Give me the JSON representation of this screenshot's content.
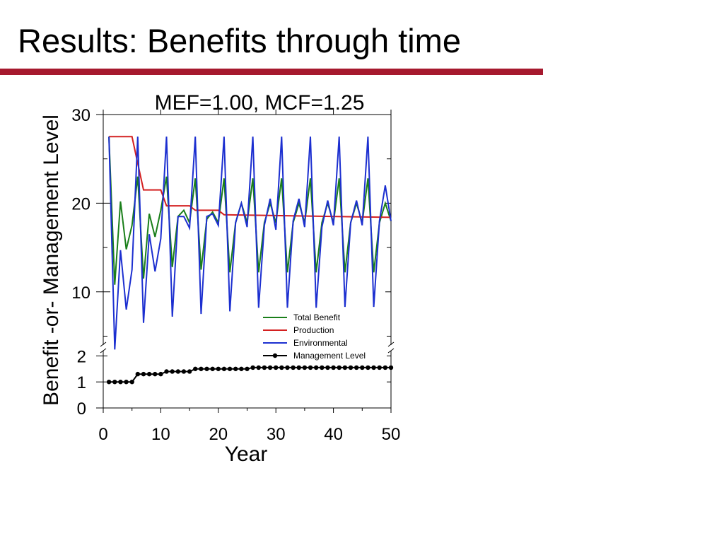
{
  "slide": {
    "title": "Results: Benefits through time",
    "accent_color": "#a6192e"
  },
  "chart_data": {
    "type": "line",
    "title": "MEF=1.00, MCF=1.25",
    "xlabel": "Year",
    "ylabel": "Benefit -or- Management Level",
    "xlim": [
      0,
      50
    ],
    "x_ticks": [
      0,
      10,
      20,
      30,
      40,
      50
    ],
    "upper_panel": {
      "ylim": [
        4,
        30
      ],
      "y_ticks": [
        10,
        20,
        30
      ]
    },
    "lower_panel": {
      "ylim": [
        0,
        2.2
      ],
      "y_ticks": [
        0,
        1,
        2
      ]
    },
    "axis_break": true,
    "grid": false,
    "legend_position": "bottom-right of upper panel",
    "series": [
      {
        "name": "Total Benefit",
        "color": "#1a7f1a",
        "panel": "upper",
        "x": [
          1,
          2,
          3,
          4,
          5,
          6,
          7,
          8,
          9,
          10,
          11,
          12,
          13,
          14,
          15,
          16,
          17,
          18,
          19,
          20,
          21,
          22,
          23,
          24,
          25,
          26,
          27,
          28,
          29,
          30,
          31,
          32,
          33,
          34,
          35,
          36,
          37,
          38,
          39,
          40,
          41,
          42,
          43,
          44,
          45,
          46,
          47,
          48,
          49,
          50
        ],
        "values": [
          27.5,
          10.8,
          20.2,
          14.8,
          17.5,
          23.0,
          11.5,
          18.8,
          16.2,
          19.2,
          23.0,
          12.8,
          18.5,
          19.2,
          17.8,
          22.8,
          12.5,
          18.2,
          19.0,
          17.8,
          22.8,
          12.2,
          17.8,
          20.0,
          17.8,
          22.8,
          12.2,
          17.8,
          20.0,
          17.8,
          22.8,
          12.2,
          17.8,
          20.0,
          17.8,
          22.8,
          12.2,
          17.8,
          20.0,
          17.8,
          22.8,
          12.2,
          17.8,
          20.0,
          17.8,
          22.8,
          12.2,
          17.8,
          20.0,
          18.0
        ]
      },
      {
        "name": "Production",
        "color": "#d42020",
        "panel": "upper",
        "x": [
          1,
          5,
          6,
          7,
          10,
          11,
          15,
          16,
          20,
          21,
          50
        ],
        "values": [
          27.5,
          27.5,
          24.5,
          21.5,
          21.5,
          19.7,
          19.7,
          19.2,
          19.2,
          18.7,
          18.4
        ]
      },
      {
        "name": "Environmental",
        "color": "#1c2fd0",
        "panel": "upper",
        "x": [
          1,
          2,
          3,
          4,
          5,
          6,
          7,
          8,
          9,
          10,
          11,
          12,
          13,
          14,
          15,
          16,
          17,
          18,
          19,
          20,
          21,
          22,
          23,
          24,
          25,
          26,
          27,
          28,
          29,
          30,
          31,
          32,
          33,
          34,
          35,
          36,
          37,
          38,
          39,
          40,
          41,
          42,
          43,
          44,
          45,
          46,
          47,
          48,
          49,
          50
        ],
        "values": [
          27.5,
          3.5,
          14.7,
          8.0,
          12.5,
          27.5,
          6.5,
          16.5,
          12.3,
          16.0,
          27.5,
          7.2,
          18.5,
          18.5,
          17.2,
          27.5,
          7.5,
          18.5,
          18.8,
          17.5,
          27.5,
          7.8,
          17.8,
          20.0,
          17.3,
          27.5,
          8.2,
          17.5,
          20.5,
          17.0,
          27.5,
          8.2,
          18.0,
          20.5,
          17.3,
          27.5,
          8.2,
          17.3,
          20.3,
          17.5,
          27.5,
          8.3,
          17.8,
          20.3,
          17.5,
          27.5,
          8.3,
          18.0,
          22.0,
          18.0
        ]
      },
      {
        "name": "Management Level",
        "color": "#000000",
        "panel": "lower",
        "markers": true,
        "x": [
          1,
          2,
          3,
          4,
          5,
          6,
          7,
          8,
          9,
          10,
          11,
          12,
          13,
          14,
          15,
          16,
          17,
          18,
          19,
          20,
          21,
          22,
          23,
          24,
          25,
          26,
          27,
          28,
          29,
          30,
          31,
          32,
          33,
          34,
          35,
          36,
          37,
          38,
          39,
          40,
          41,
          42,
          43,
          44,
          45,
          46,
          47,
          48,
          49,
          50
        ],
        "values": [
          1.0,
          1.0,
          1.0,
          1.0,
          1.0,
          1.3,
          1.3,
          1.3,
          1.3,
          1.3,
          1.4,
          1.4,
          1.4,
          1.4,
          1.4,
          1.5,
          1.5,
          1.5,
          1.5,
          1.5,
          1.5,
          1.5,
          1.5,
          1.5,
          1.5,
          1.55,
          1.55,
          1.55,
          1.55,
          1.55,
          1.55,
          1.55,
          1.55,
          1.55,
          1.55,
          1.55,
          1.55,
          1.55,
          1.55,
          1.55,
          1.55,
          1.55,
          1.55,
          1.55,
          1.55,
          1.55,
          1.55,
          1.55,
          1.55,
          1.55
        ]
      }
    ]
  }
}
